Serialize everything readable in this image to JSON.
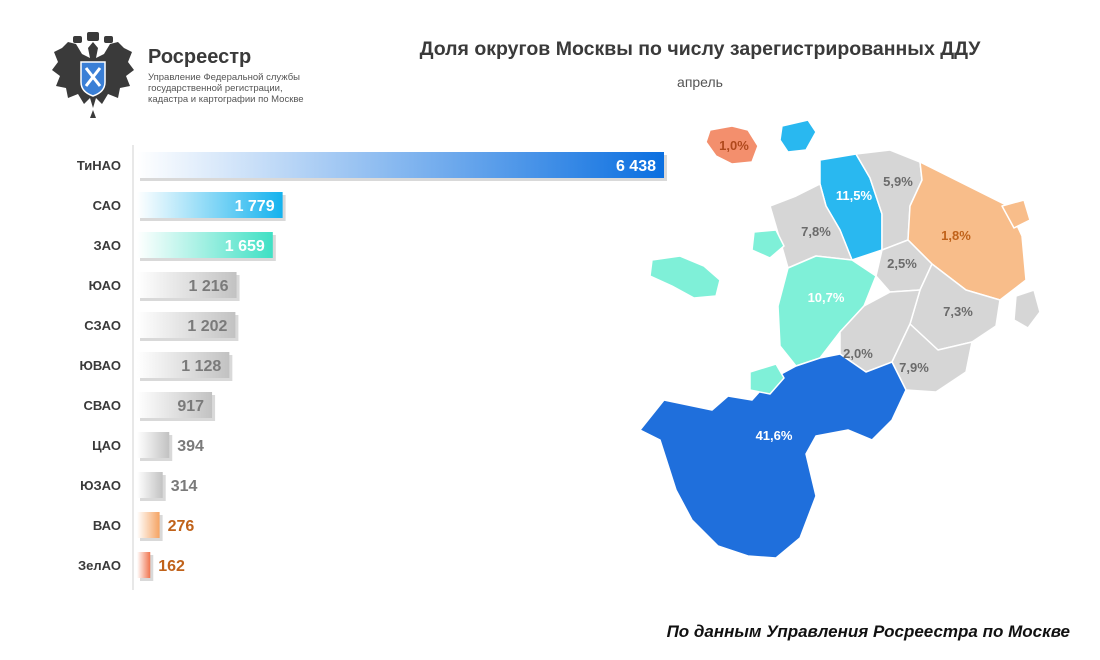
{
  "header": {
    "logo_name": "Росреестр",
    "logo_subtitle_lines": [
      "Управление Федеральной службы",
      "государственной регистрации,",
      "кадастра и картографии по Москве"
    ]
  },
  "chart_data": {
    "type": "bar",
    "orientation": "horizontal",
    "title": "Доля округов Москвы по числу зарегистрированных ДДУ",
    "subtitle": "апрель",
    "categories": [
      "ТиНАО",
      "САО",
      "ЗАО",
      "ЮАО",
      "СЗАО",
      "ЮВАО",
      "СВАО",
      "ЦАО",
      "ЮЗАО",
      "ВАО",
      "ЗелАО"
    ],
    "values": [
      6438,
      1779,
      1659,
      1216,
      1202,
      1128,
      917,
      394,
      314,
      276,
      162
    ],
    "value_labels": [
      "6 438",
      "1 779",
      "1 659",
      "1 216",
      "1 202",
      "1 128",
      "917",
      "394",
      "314",
      "276",
      "162"
    ],
    "bar_colors": [
      "#1f7ee6",
      "#1ab9ef",
      "#4fe3c7",
      "#c9c9c9",
      "#c9c9c9",
      "#c9c9c9",
      "#c9c9c9",
      "#c9c9c9",
      "#c9c9c9",
      "#f5a463",
      "#f0744e"
    ],
    "label_colors": [
      "#ffffff",
      "#ffffff",
      "#ffffff",
      "#7a7a7a",
      "#7a7a7a",
      "#7a7a7a",
      "#7a7a7a",
      "#7a7a7a",
      "#7a7a7a",
      "#c0621a",
      "#c0621a"
    ]
  },
  "map": {
    "regions": [
      {
        "district": "ЗелАО",
        "label": "1,0%",
        "color": "#f38f6d",
        "text_color": "#b0491d"
      },
      {
        "district": "САО",
        "label": "11,5%",
        "color": "#29b8f0",
        "text_color": "#ffffff"
      },
      {
        "district": "СВАО",
        "label": "5,9%",
        "color": "#d6d6d6",
        "text_color": "#6b6b6b"
      },
      {
        "district": "СЗАО",
        "label": "7,8%",
        "color": "#d6d6d6",
        "text_color": "#6b6b6b"
      },
      {
        "district": "ВАО",
        "label": "1,8%",
        "color": "#f8bd8a",
        "text_color": "#c0621a"
      },
      {
        "district": "ЦАО",
        "label": "2,5%",
        "color": "#d6d6d6",
        "text_color": "#6b6b6b"
      },
      {
        "district": "ЗАО",
        "label": "10,7%",
        "color": "#7ff0d8",
        "text_color": "#ffffff"
      },
      {
        "district": "ЮВАО",
        "label": "7,3%",
        "color": "#d6d6d6",
        "text_color": "#6b6b6b"
      },
      {
        "district": "ЮЗАО",
        "label": "2,0%",
        "color": "#d6d6d6",
        "text_color": "#6b6b6b"
      },
      {
        "district": "ЮАО",
        "label": "7,9%",
        "color": "#d6d6d6",
        "text_color": "#6b6b6b"
      },
      {
        "district": "ТиНАО",
        "label": "41,6%",
        "color": "#1f6fdc",
        "text_color": "#ffffff"
      }
    ]
  },
  "footer": {
    "source_note": "По данным Управления Росреестра по Москве"
  }
}
